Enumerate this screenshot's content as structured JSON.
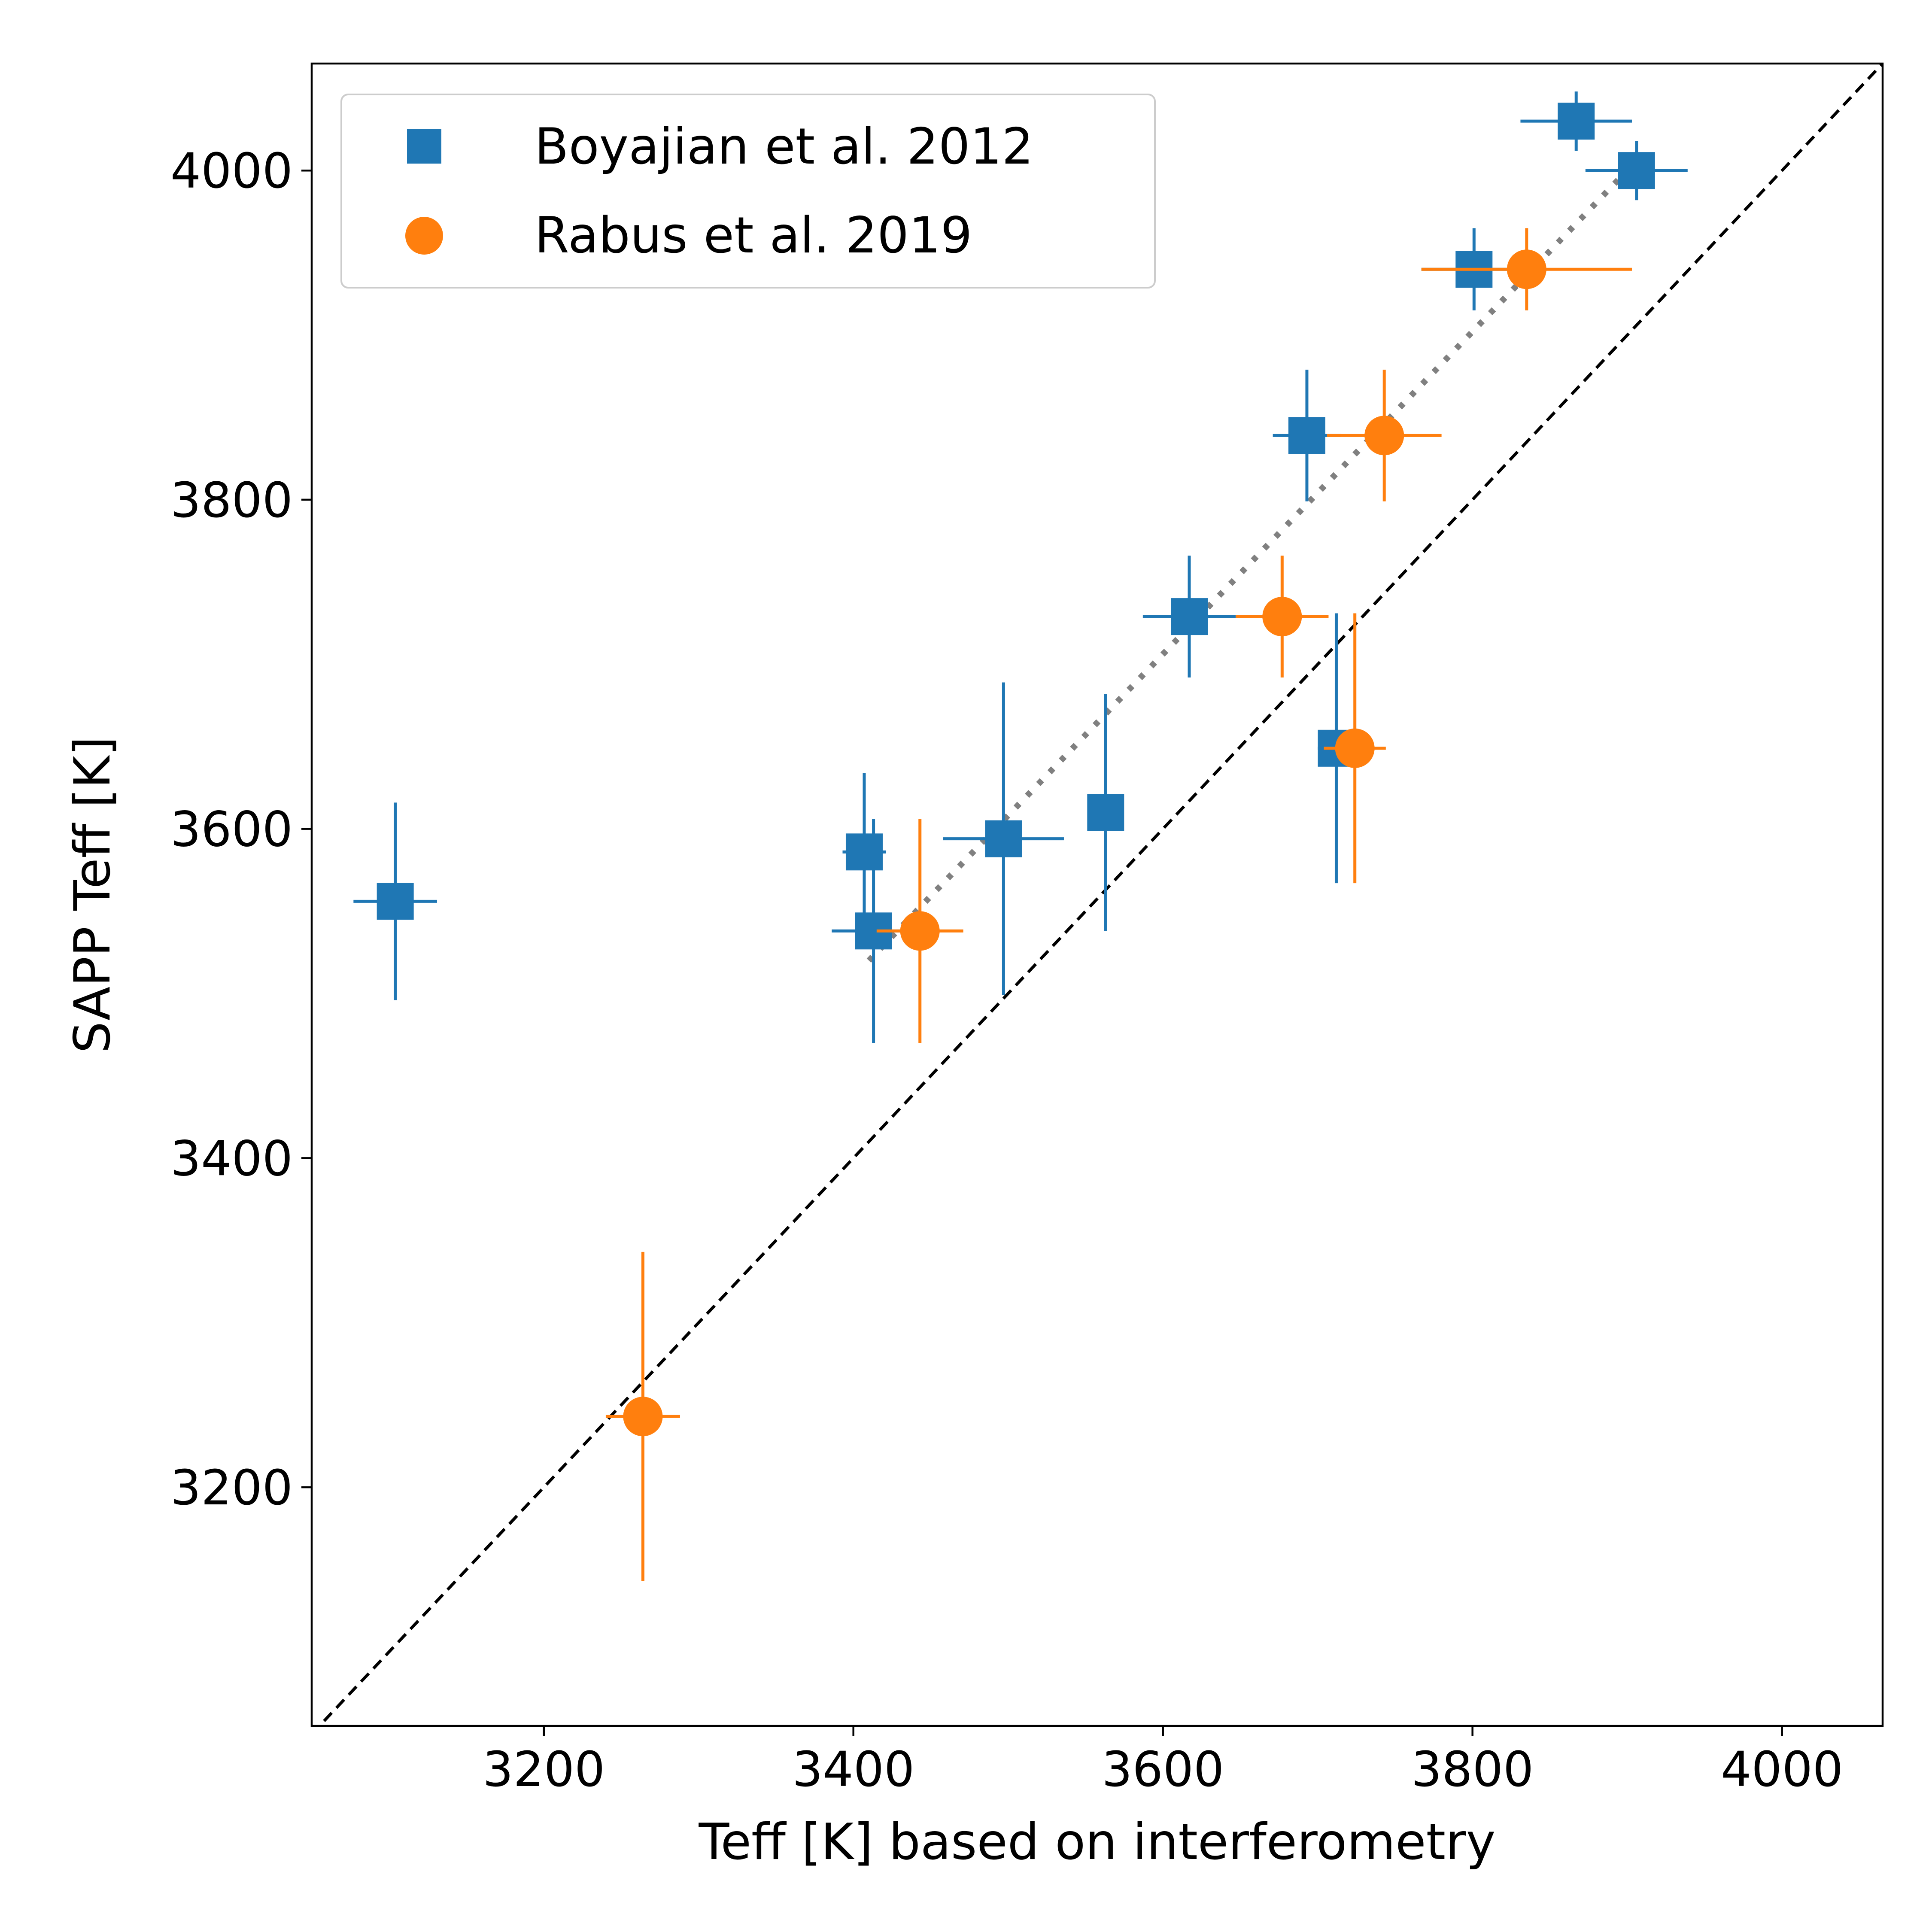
{
  "chart_data": {
    "type": "scatter",
    "xlabel": "Teff [K] based on interferometry",
    "ylabel": "SAPP Teff [K]",
    "xlim": [
      3050,
      4065
    ],
    "ylim": [
      3055,
      4065
    ],
    "xticks": [
      "3200",
      "3400",
      "3600",
      "3800",
      "4000"
    ],
    "yticks": [
      "3200",
      "3400",
      "3600",
      "3800",
      "4000"
    ],
    "grid": false,
    "legend_position": "top-left",
    "reference_lines": [
      {
        "style": "dashed",
        "color": "#000000",
        "x": [
          3050,
          4065
        ],
        "y": [
          3050,
          4065
        ]
      },
      {
        "style": "dotted",
        "color": "#808080",
        "x": [
          3410,
          3905
        ],
        "y": [
          3520,
          4005
        ]
      }
    ],
    "series": [
      {
        "name": "Boyajian et al. 2012",
        "marker": "square",
        "color": "#1f77b4",
        "points": [
          {
            "x": 3104,
            "y": 3556,
            "xerr": 27,
            "yerr": 60
          },
          {
            "x": 3407,
            "y": 3586,
            "xerr": 14,
            "yerr": 48
          },
          {
            "x": 3413,
            "y": 3538,
            "xerr": 27,
            "yerr": 68
          },
          {
            "x": 3497,
            "y": 3594,
            "xerr": 39,
            "yerr": 95
          },
          {
            "x": 3563,
            "y": 3610,
            "xerr": 0,
            "yerr": 72
          },
          {
            "x": 3617,
            "y": 3729,
            "xerr": 30,
            "yerr": 37
          },
          {
            "x": 3693,
            "y": 3839,
            "xerr": 22,
            "yerr": 40
          },
          {
            "x": 3712,
            "y": 3649,
            "xerr": 12,
            "yerr": 82
          },
          {
            "x": 3801,
            "y": 3940,
            "xerr": 34,
            "yerr": 25
          },
          {
            "x": 3867,
            "y": 4030,
            "xerr": 36,
            "yerr": 18
          },
          {
            "x": 3906,
            "y": 4000,
            "xerr": 33,
            "yerr": 18
          }
        ]
      },
      {
        "name": "Rabus et al. 2019",
        "marker": "circle",
        "color": "#ff7f0e",
        "points": [
          {
            "x": 3264,
            "y": 3243,
            "xerr": 24,
            "yerr": 100
          },
          {
            "x": 3443,
            "y": 3538,
            "xerr": 28,
            "yerr": 68
          },
          {
            "x": 3677,
            "y": 3729,
            "xerr": 30,
            "yerr": 37
          },
          {
            "x": 3724,
            "y": 3649,
            "xerr": 20,
            "yerr": 82
          },
          {
            "x": 3743,
            "y": 3839,
            "xerr": 37,
            "yerr": 40
          },
          {
            "x": 3835,
            "y": 3940,
            "xerr": 68,
            "yerr": 25
          }
        ]
      }
    ]
  }
}
